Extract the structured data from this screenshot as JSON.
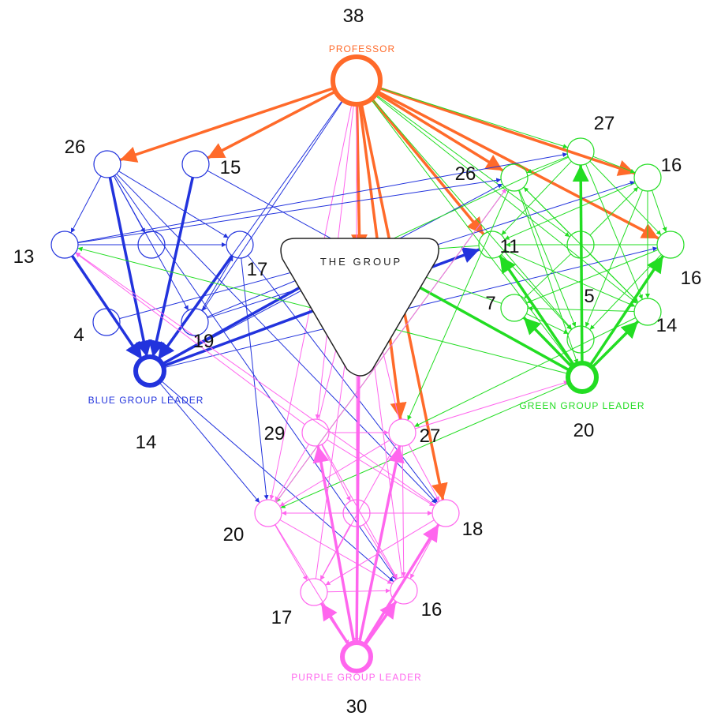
{
  "colors": {
    "professor": "#ff6a2a",
    "blue": "#2233dd",
    "green": "#22dd22",
    "purple": "#ff66ee",
    "center_outline": "#222222"
  },
  "center": {
    "label": "THE GROUP"
  },
  "nodes": [
    {
      "id": "prof",
      "group": "professor",
      "number": "38",
      "role": "PROFESSOR",
      "leader": true
    },
    {
      "id": "b26",
      "group": "blue",
      "number": "26"
    },
    {
      "id": "b15",
      "group": "blue",
      "number": "15"
    },
    {
      "id": "b13",
      "group": "blue",
      "number": "13"
    },
    {
      "id": "b17",
      "group": "blue",
      "number": "17"
    },
    {
      "id": "b4",
      "group": "blue",
      "number": "4"
    },
    {
      "id": "b19",
      "group": "blue",
      "number": "19"
    },
    {
      "id": "bmid",
      "group": "blue",
      "number": ""
    },
    {
      "id": "bl",
      "group": "blue",
      "number": "14",
      "role": "BLUE GROUP LEADER",
      "leader": true
    },
    {
      "id": "g27",
      "group": "green",
      "number": "27"
    },
    {
      "id": "g16a",
      "group": "green",
      "number": "16"
    },
    {
      "id": "g26",
      "group": "green",
      "number": "26"
    },
    {
      "id": "g11",
      "group": "green",
      "number": "11"
    },
    {
      "id": "g16b",
      "group": "green",
      "number": "16"
    },
    {
      "id": "g7",
      "group": "green",
      "number": "7"
    },
    {
      "id": "g5",
      "group": "green",
      "number": "5"
    },
    {
      "id": "g14",
      "group": "green",
      "number": "14"
    },
    {
      "id": "gmid",
      "group": "green",
      "number": ""
    },
    {
      "id": "gl",
      "group": "green",
      "number": "20",
      "role": "GREEN GROUP LEADER",
      "leader": true
    },
    {
      "id": "p29",
      "group": "purple",
      "number": "29"
    },
    {
      "id": "p27",
      "group": "purple",
      "number": "27"
    },
    {
      "id": "p20",
      "group": "purple",
      "number": "20"
    },
    {
      "id": "p18",
      "group": "purple",
      "number": "18"
    },
    {
      "id": "p17",
      "group": "purple",
      "number": "17"
    },
    {
      "id": "p16",
      "group": "purple",
      "number": "16"
    },
    {
      "id": "pmid",
      "group": "purple",
      "number": ""
    },
    {
      "id": "pl",
      "group": "purple",
      "number": "30",
      "role": "PURPLE GROUP LEADER",
      "leader": true
    }
  ],
  "edges": [
    {
      "from": "prof",
      "to": "b26",
      "color": "professor",
      "weight": "strong"
    },
    {
      "from": "prof",
      "to": "b15",
      "color": "professor",
      "weight": "strong"
    },
    {
      "from": "prof",
      "to": "center",
      "color": "professor",
      "weight": "strong"
    },
    {
      "from": "prof",
      "to": "g26",
      "color": "professor",
      "weight": "strong"
    },
    {
      "from": "prof",
      "to": "g11",
      "color": "professor",
      "weight": "strong"
    },
    {
      "from": "prof",
      "to": "g16a",
      "color": "professor",
      "weight": "strong"
    },
    {
      "from": "prof",
      "to": "g16b",
      "color": "professor",
      "weight": "strong"
    },
    {
      "from": "prof",
      "to": "p27",
      "color": "professor",
      "weight": "strong"
    },
    {
      "from": "prof",
      "to": "p18",
      "color": "professor",
      "weight": "strong"
    },
    {
      "from": "prof",
      "to": "g27",
      "color": "green",
      "weight": "thin"
    },
    {
      "from": "prof",
      "to": "g5",
      "color": "green",
      "weight": "thin"
    },
    {
      "from": "prof",
      "to": "g14",
      "color": "green",
      "weight": "thin"
    },
    {
      "from": "prof",
      "to": "gl",
      "color": "green",
      "weight": "thin"
    },
    {
      "from": "prof",
      "to": "gmid",
      "color": "green",
      "weight": "thin"
    },
    {
      "from": "prof",
      "to": "p29",
      "color": "purple",
      "weight": "thin"
    },
    {
      "from": "prof",
      "to": "pl",
      "color": "purple",
      "weight": "thin"
    },
    {
      "from": "prof",
      "to": "p20",
      "color": "purple",
      "weight": "thin"
    },
    {
      "from": "prof",
      "to": "b19",
      "color": "blue",
      "weight": "thin"
    },
    {
      "from": "prof",
      "to": "bl",
      "color": "blue",
      "weight": "thin"
    },
    {
      "from": "b26",
      "to": "bl",
      "color": "blue",
      "weight": "strong"
    },
    {
      "from": "b15",
      "to": "bl",
      "color": "blue",
      "weight": "strong"
    },
    {
      "from": "b17",
      "to": "bl",
      "color": "blue",
      "weight": "strong"
    },
    {
      "from": "b13",
      "to": "bl",
      "color": "blue",
      "weight": "strong"
    },
    {
      "from": "bl",
      "to": "center",
      "color": "blue",
      "weight": "strong"
    },
    {
      "from": "bl",
      "to": "g11",
      "color": "blue",
      "weight": "strong"
    },
    {
      "from": "bl",
      "to": "g16b",
      "color": "blue",
      "weight": "thin"
    },
    {
      "from": "b26",
      "to": "b13",
      "color": "blue",
      "weight": "thin"
    },
    {
      "from": "b26",
      "to": "b17",
      "color": "blue",
      "weight": "thin"
    },
    {
      "from": "b26",
      "to": "bmid",
      "color": "blue",
      "weight": "thin"
    },
    {
      "from": "b26",
      "to": "b19",
      "color": "blue",
      "weight": "thin"
    },
    {
      "from": "b26",
      "to": "p16",
      "color": "blue",
      "weight": "thin"
    },
    {
      "from": "b26",
      "to": "p18",
      "color": "blue",
      "weight": "thin"
    },
    {
      "from": "b13",
      "to": "b17",
      "color": "blue",
      "weight": "thin"
    },
    {
      "from": "b13",
      "to": "g26",
      "color": "blue",
      "weight": "thin"
    },
    {
      "from": "b13",
      "to": "g27",
      "color": "blue",
      "weight": "thin"
    },
    {
      "from": "b4",
      "to": "center",
      "color": "blue",
      "weight": "thin"
    },
    {
      "from": "b19",
      "to": "center",
      "color": "blue",
      "weight": "thin"
    },
    {
      "from": "b19",
      "to": "g16a",
      "color": "blue",
      "weight": "thin"
    },
    {
      "from": "b19",
      "to": "b17",
      "color": "blue",
      "weight": "thin"
    },
    {
      "from": "b15",
      "to": "center",
      "color": "blue",
      "weight": "thin"
    },
    {
      "from": "bl",
      "to": "p20",
      "color": "blue",
      "weight": "thin"
    },
    {
      "from": "bl",
      "to": "p16",
      "color": "blue",
      "weight": "thin"
    },
    {
      "from": "bl",
      "to": "g26",
      "color": "blue",
      "weight": "thin"
    },
    {
      "from": "b17",
      "to": "p20",
      "color": "blue",
      "weight": "thin"
    },
    {
      "from": "b17",
      "to": "p18",
      "color": "blue",
      "weight": "thin"
    },
    {
      "from": "gl",
      "to": "g11",
      "color": "green",
      "weight": "strong"
    },
    {
      "from": "gl",
      "to": "g16b",
      "color": "green",
      "weight": "strong"
    },
    {
      "from": "gl",
      "to": "g27",
      "color": "green",
      "weight": "strong"
    },
    {
      "from": "gl",
      "to": "g14",
      "color": "green",
      "weight": "strong"
    },
    {
      "from": "gl",
      "to": "center",
      "color": "green",
      "weight": "strong"
    },
    {
      "from": "gl",
      "to": "g7",
      "color": "green",
      "weight": "strong"
    },
    {
      "from": "g27",
      "to": "g16a",
      "color": "green",
      "weight": "thin"
    },
    {
      "from": "g27",
      "to": "g26",
      "color": "green",
      "weight": "thin"
    },
    {
      "from": "g27",
      "to": "g14",
      "color": "green",
      "weight": "thin"
    },
    {
      "from": "g27",
      "to": "g11",
      "color": "green",
      "weight": "thin"
    },
    {
      "from": "g27",
      "to": "g16b",
      "color": "green",
      "weight": "thin"
    },
    {
      "from": "g27",
      "to": "center",
      "color": "green",
      "weight": "thin"
    },
    {
      "from": "g16a",
      "to": "g16b",
      "color": "green",
      "weight": "thin"
    },
    {
      "from": "g16a",
      "to": "g14",
      "color": "green",
      "weight": "thin"
    },
    {
      "from": "g16a",
      "to": "g11",
      "color": "green",
      "weight": "thin"
    },
    {
      "from": "g16a",
      "to": "g5",
      "color": "green",
      "weight": "thin"
    },
    {
      "from": "g26",
      "to": "g14",
      "color": "green",
      "weight": "thin"
    },
    {
      "from": "g26",
      "to": "g5",
      "color": "green",
      "weight": "thin"
    },
    {
      "from": "g26",
      "to": "gl",
      "color": "green",
      "weight": "thin"
    },
    {
      "from": "g26",
      "to": "p27",
      "color": "green",
      "weight": "thin"
    },
    {
      "from": "g26",
      "to": "p20",
      "color": "green",
      "weight": "thin"
    },
    {
      "from": "g16b",
      "to": "g11",
      "color": "green",
      "weight": "thin"
    },
    {
      "from": "g16b",
      "to": "g7",
      "color": "green",
      "weight": "thin"
    },
    {
      "from": "g16b",
      "to": "g5",
      "color": "green",
      "weight": "thin"
    },
    {
      "from": "g11",
      "to": "g14",
      "color": "green",
      "weight": "thin"
    },
    {
      "from": "g11",
      "to": "g5",
      "color": "green",
      "weight": "thin"
    },
    {
      "from": "g11",
      "to": "center",
      "color": "green",
      "weight": "thin"
    },
    {
      "from": "g14",
      "to": "g7",
      "color": "green",
      "weight": "thin"
    },
    {
      "from": "g14",
      "to": "p27",
      "color": "green",
      "weight": "thin"
    },
    {
      "from": "g7",
      "to": "g5",
      "color": "green",
      "weight": "thin"
    },
    {
      "from": "g7",
      "to": "center",
      "color": "green",
      "weight": "thin"
    },
    {
      "from": "gl",
      "to": "p20",
      "color": "green",
      "weight": "thin"
    },
    {
      "from": "gl",
      "to": "b13",
      "color": "green",
      "weight": "thin"
    },
    {
      "from": "gmid",
      "to": "g26",
      "color": "green",
      "weight": "thin"
    },
    {
      "from": "gmid",
      "to": "g14",
      "color": "green",
      "weight": "thin"
    },
    {
      "from": "gmid",
      "to": "g7",
      "color": "green",
      "weight": "thin"
    },
    {
      "from": "gmid",
      "to": "g16a",
      "color": "green",
      "weight": "thin"
    },
    {
      "from": "pl",
      "to": "center",
      "color": "purple",
      "weight": "strong"
    },
    {
      "from": "pl",
      "to": "p18",
      "color": "purple",
      "weight": "strong"
    },
    {
      "from": "pl",
      "to": "p16",
      "color": "purple",
      "weight": "strong"
    },
    {
      "from": "pl",
      "to": "p17",
      "color": "purple",
      "weight": "strong"
    },
    {
      "from": "pl",
      "to": "p27",
      "color": "purple",
      "weight": "strong"
    },
    {
      "from": "pl",
      "to": "p29",
      "color": "purple",
      "weight": "strong"
    },
    {
      "from": "p29",
      "to": "p27",
      "color": "purple",
      "weight": "thin"
    },
    {
      "from": "p29",
      "to": "p18",
      "color": "purple",
      "weight": "thin"
    },
    {
      "from": "p29",
      "to": "p20",
      "color": "purple",
      "weight": "thin"
    },
    {
      "from": "p29",
      "to": "p16",
      "color": "purple",
      "weight": "thin"
    },
    {
      "from": "p29",
      "to": "pmid",
      "color": "purple",
      "weight": "thin"
    },
    {
      "from": "p29",
      "to": "center",
      "color": "purple",
      "weight": "thin"
    },
    {
      "from": "p27",
      "to": "p20",
      "color": "purple",
      "weight": "thin"
    },
    {
      "from": "p27",
      "to": "p18",
      "color": "purple",
      "weight": "thin"
    },
    {
      "from": "p27",
      "to": "p17",
      "color": "purple",
      "weight": "thin"
    },
    {
      "from": "p27",
      "to": "p16",
      "color": "purple",
      "weight": "thin"
    },
    {
      "from": "p27",
      "to": "center",
      "color": "purple",
      "weight": "thin"
    },
    {
      "from": "p20",
      "to": "p18",
      "color": "purple",
      "weight": "thin"
    },
    {
      "from": "p20",
      "to": "p17",
      "color": "purple",
      "weight": "thin"
    },
    {
      "from": "p20",
      "to": "p16",
      "color": "purple",
      "weight": "thin"
    },
    {
      "from": "p20",
      "to": "pl",
      "color": "purple",
      "weight": "thin"
    },
    {
      "from": "p18",
      "to": "p17",
      "color": "purple",
      "weight": "thin"
    },
    {
      "from": "p18",
      "to": "p16",
      "color": "purple",
      "weight": "thin"
    },
    {
      "from": "p17",
      "to": "p16",
      "color": "purple",
      "weight": "thin"
    },
    {
      "from": "pmid",
      "to": "p20",
      "color": "purple",
      "weight": "thin"
    },
    {
      "from": "pmid",
      "to": "p18",
      "color": "purple",
      "weight": "thin"
    },
    {
      "from": "pmid",
      "to": "p17",
      "color": "purple",
      "weight": "thin"
    },
    {
      "from": "pmid",
      "to": "p16",
      "color": "purple",
      "weight": "thin"
    },
    {
      "from": "p29",
      "to": "b13",
      "color": "purple",
      "weight": "thin"
    },
    {
      "from": "p18",
      "to": "b13",
      "color": "purple",
      "weight": "thin"
    },
    {
      "from": "p20",
      "to": "g26",
      "color": "purple",
      "weight": "thin"
    },
    {
      "from": "p27",
      "to": "gl",
      "color": "purple",
      "weight": "thin"
    },
    {
      "from": "p16",
      "to": "center",
      "color": "purple",
      "weight": "thin"
    },
    {
      "from": "p17",
      "to": "center",
      "color": "purple",
      "weight": "thin"
    }
  ]
}
